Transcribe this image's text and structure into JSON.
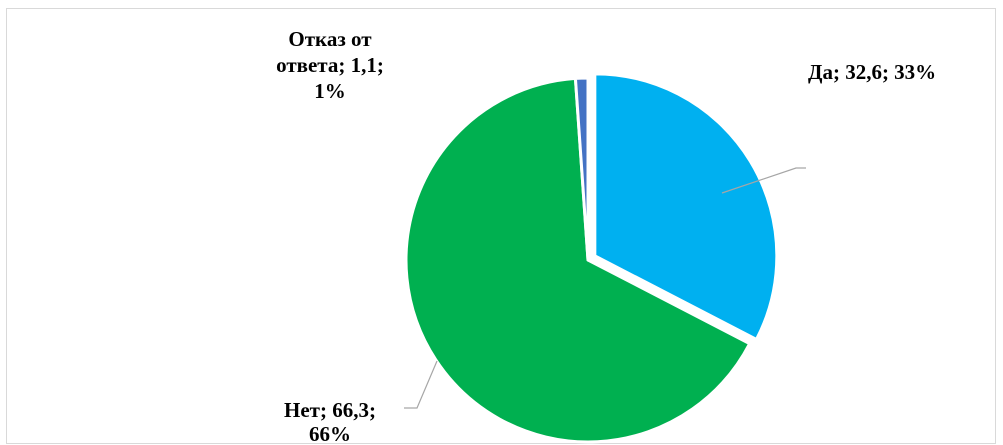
{
  "chart_data": {
    "type": "pie",
    "title": "",
    "slices": [
      {
        "name": "Да",
        "value": 32.6,
        "percent": "33%",
        "color": "#00b0f0",
        "label_lines": [
          "Да; 32,6; 33%"
        ]
      },
      {
        "name": "Нет",
        "value": 66.3,
        "percent": "66%",
        "color": "#00b050",
        "label_lines": [
          "Нет; 66,3;",
          "66%"
        ]
      },
      {
        "name": "Отказ от ответа",
        "value": 1.1,
        "percent": "1%",
        "color": "#4472c4",
        "label_lines": [
          "Отказ от",
          "ответа; 1,1;",
          "1%"
        ]
      }
    ],
    "legend": "none",
    "start_angle_deg": 0,
    "direction": "clockwise",
    "exploded_slice": "Да"
  }
}
